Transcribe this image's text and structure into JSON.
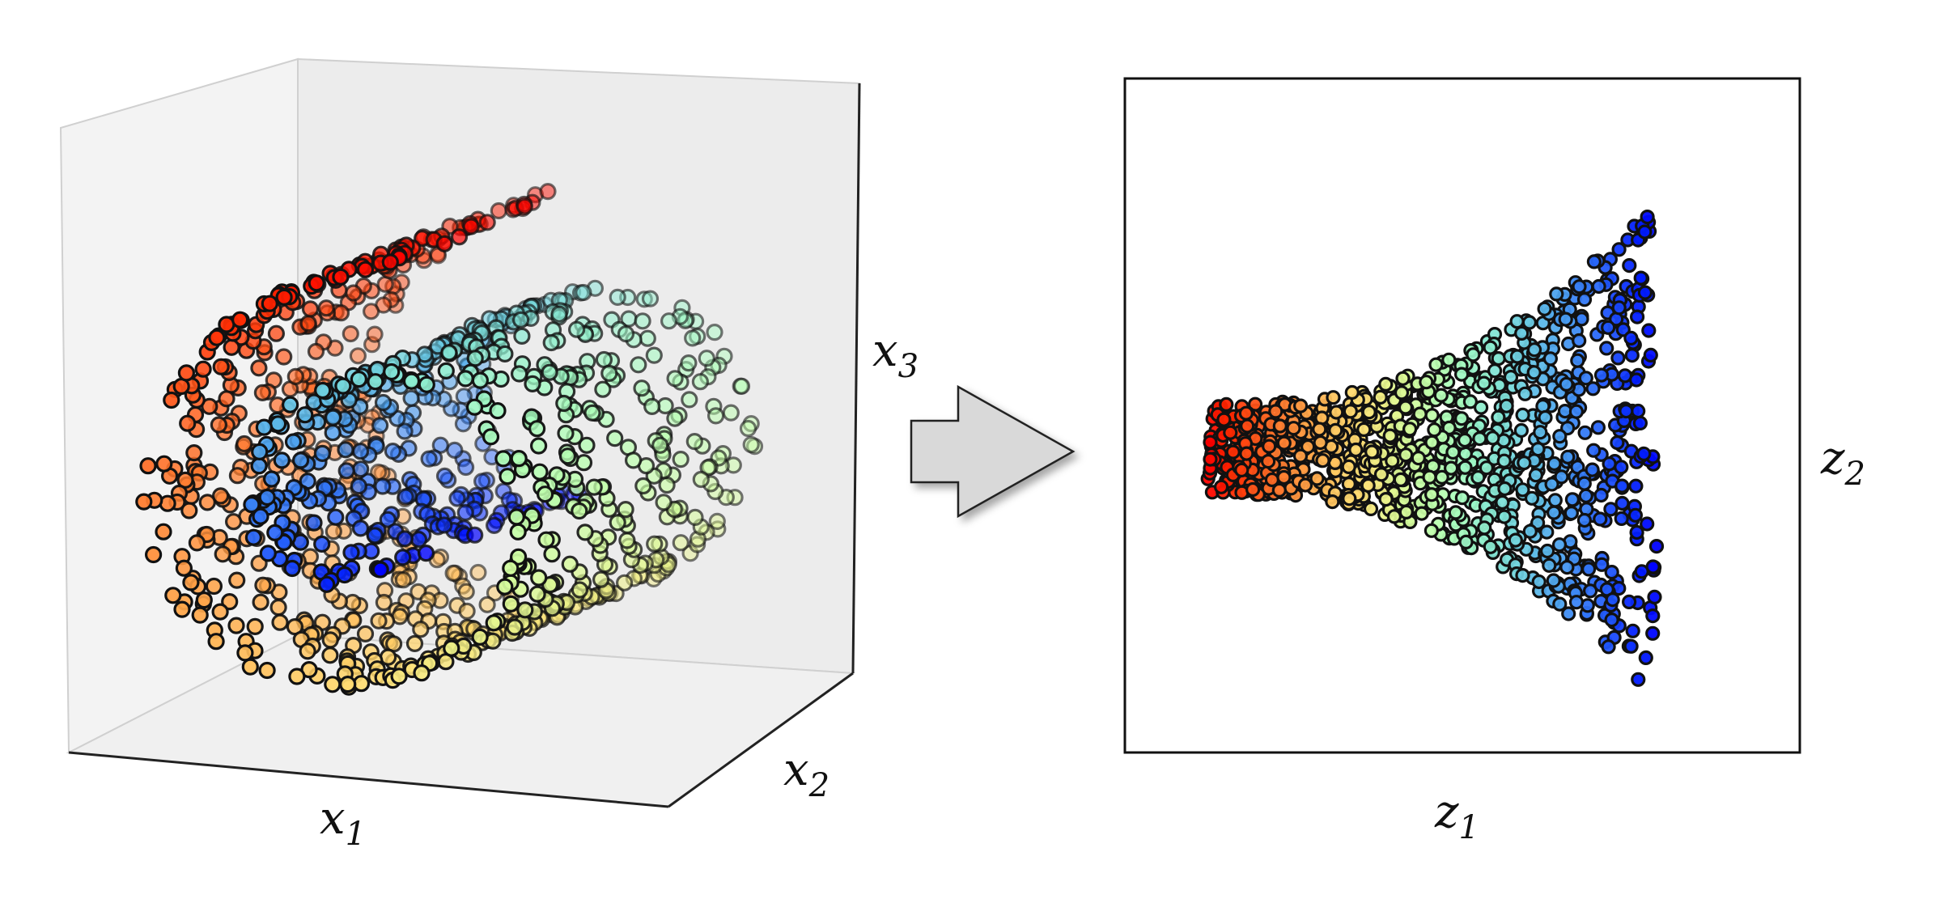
{
  "input_plot": {
    "axis_labels": {
      "x1": {
        "base": "x",
        "sub": "1"
      },
      "x2": {
        "base": "x",
        "sub": "2"
      },
      "x3": {
        "base": "x",
        "sub": "3"
      }
    },
    "colormap": "rainbow"
  },
  "output_plot": {
    "axis_labels": {
      "z1": {
        "base": "z",
        "sub": "1"
      },
      "z2": {
        "base": "z",
        "sub": "2"
      }
    },
    "colormap": "rainbow"
  },
  "colors": {
    "pane_fill": "#ececec",
    "arrow_fill": "#d9d9d9",
    "point_edge": "#111111"
  }
}
